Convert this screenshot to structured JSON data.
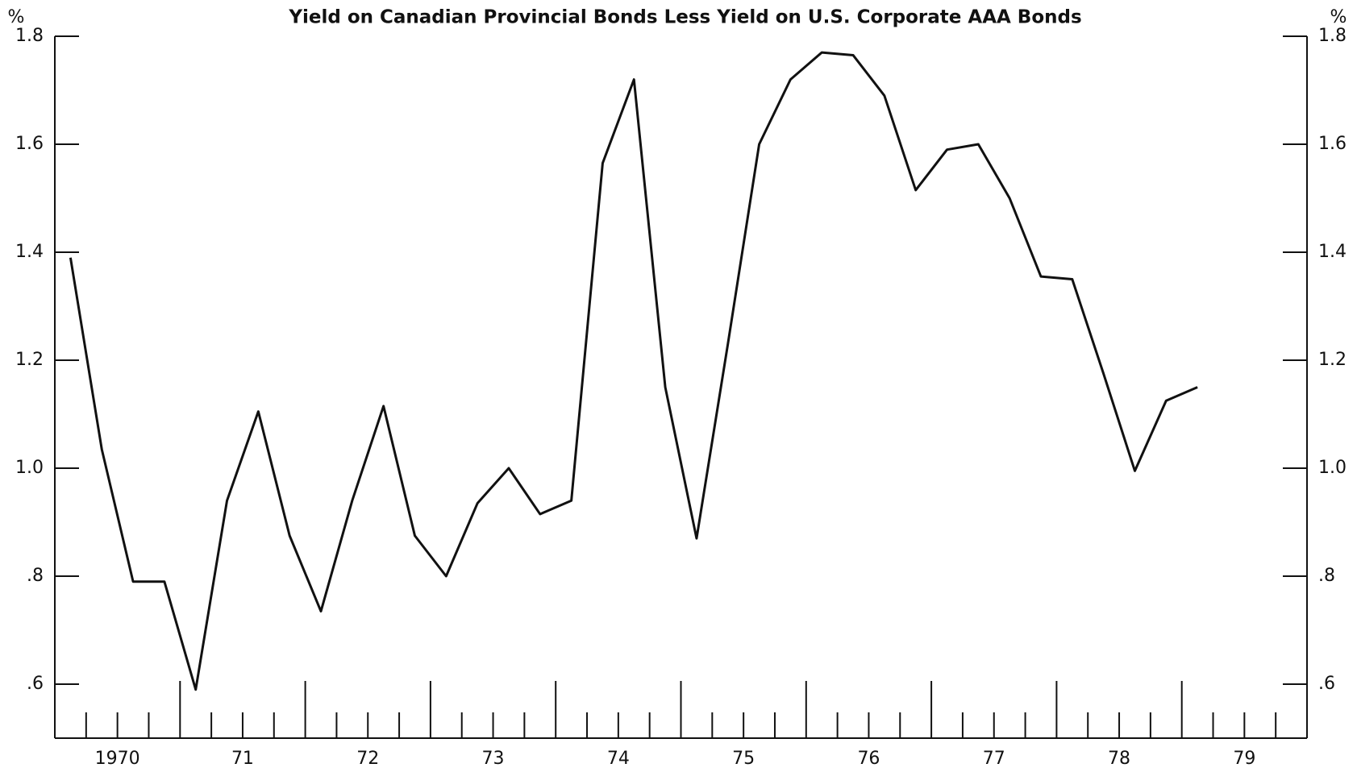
{
  "chart_data": {
    "type": "line",
    "title": "Yield on Canadian Provincial Bonds Less Yield on U.S. Corporate AAA Bonds",
    "y_unit": "%",
    "x": [
      1970.125,
      1970.375,
      1970.625,
      1970.875,
      1971.125,
      1971.375,
      1971.625,
      1971.875,
      1972.125,
      1972.375,
      1972.625,
      1972.875,
      1973.125,
      1973.375,
      1973.625,
      1973.875,
      1974.125,
      1974.375,
      1974.625,
      1974.875,
      1975.125,
      1975.375,
      1975.625,
      1975.875,
      1976.125,
      1976.375,
      1976.625,
      1976.875,
      1977.125,
      1977.375,
      1977.625,
      1977.875,
      1978.125,
      1978.375,
      1978.625,
      1978.875,
      1979.125
    ],
    "series": [
      {
        "color": "#111111",
        "values": [
          1.39,
          1.035,
          0.79,
          0.79,
          0.59,
          0.94,
          1.105,
          0.875,
          0.735,
          0.94,
          1.115,
          0.875,
          0.8,
          0.935,
          1.0,
          0.915,
          0.94,
          1.565,
          1.72,
          1.15,
          0.87,
          1.23,
          1.6,
          1.72,
          1.77,
          1.765,
          1.69,
          1.515,
          1.59,
          1.6,
          1.5,
          1.355,
          1.35,
          1.175,
          0.995,
          1.125,
          1.15
        ]
      }
    ],
    "xlim": [
      1970,
      1980
    ],
    "xticks": [
      {
        "value": 1970.5,
        "label": "1970"
      },
      {
        "value": 1971.5,
        "label": "71"
      },
      {
        "value": 1972.5,
        "label": "72"
      },
      {
        "value": 1973.5,
        "label": "73"
      },
      {
        "value": 1974.5,
        "label": "74"
      },
      {
        "value": 1975.5,
        "label": "75"
      },
      {
        "value": 1976.5,
        "label": "76"
      },
      {
        "value": 1977.5,
        "label": "77"
      },
      {
        "value": 1978.5,
        "label": "78"
      },
      {
        "value": 1979.5,
        "label": "79"
      }
    ],
    "ylim": [
      0.5,
      1.8
    ],
    "yticks": [
      {
        "value": 1.8,
        "label": "1.8"
      },
      {
        "value": 1.6,
        "label": "1.6"
      },
      {
        "value": 1.4,
        "label": "1.4"
      },
      {
        "value": 1.2,
        "label": "1.2"
      },
      {
        "value": 1.0,
        "label": "1.0"
      },
      {
        "value": 0.8,
        "label": ".8"
      },
      {
        "value": 0.6,
        "label": ".6"
      }
    ]
  }
}
